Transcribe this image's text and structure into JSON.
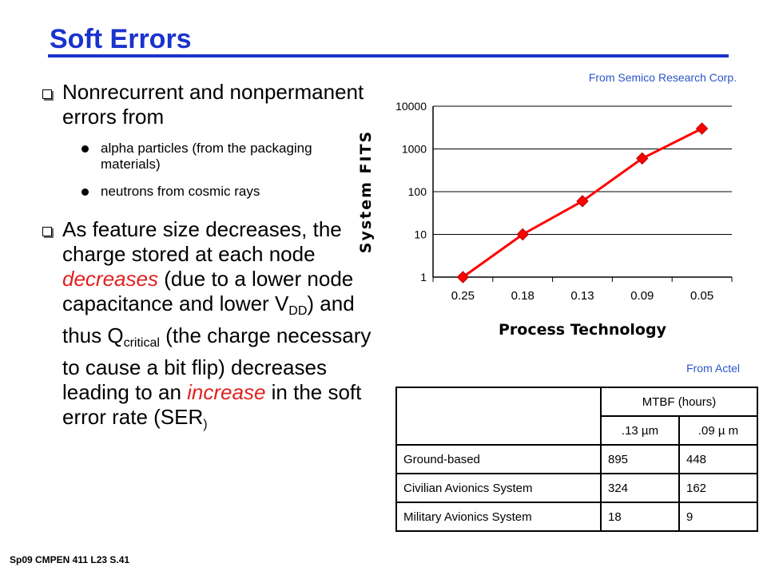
{
  "title": "Soft Errors",
  "sources": {
    "chart": "From Semico Research Corp.",
    "table": "From Actel"
  },
  "bullets": [
    {
      "text": "Nonrecurrent and nonpermanent errors from",
      "sub": [
        "alpha particles (from the packaging materials)",
        "neutrons from cosmic rays"
      ]
    },
    {
      "parts": {
        "a": "As feature size decreases, the charge stored at each node ",
        "b": "decreases",
        "c": " (due to a lower node capacitance and lower V",
        "d": "DD",
        "e": ") and thus Q",
        "f": "critical",
        "g": " (the charge necessary to cause a bit flip) decreases leading to an ",
        "h": "increase",
        "i": " in the soft error rate (SER",
        "j": ")"
      }
    }
  ],
  "chart_data": {
    "type": "line",
    "xlabel": "Process Technology",
    "ylabel": "System FITS",
    "categories": [
      "0.25",
      "0.18",
      "0.13",
      "0.09",
      "0.05"
    ],
    "values": [
      1,
      10,
      60,
      600,
      3000
    ],
    "yscale": "log",
    "ylim": [
      1,
      10000
    ],
    "yticks": [
      "1",
      "10",
      "100",
      "1000",
      "10000"
    ],
    "grid": true,
    "color": "#ff0000"
  },
  "table": {
    "header": "MTBF (hours)",
    "subheaders": [
      ".13 µm",
      ".09 µ m"
    ],
    "rows": [
      [
        "Ground-based",
        "895",
        "448"
      ],
      [
        "Civilian Avionics System",
        "324",
        "162"
      ],
      [
        "Military Avionics System",
        "18",
        "9"
      ]
    ]
  },
  "footer": "Sp09   CMPEN 411   L23   S.41"
}
